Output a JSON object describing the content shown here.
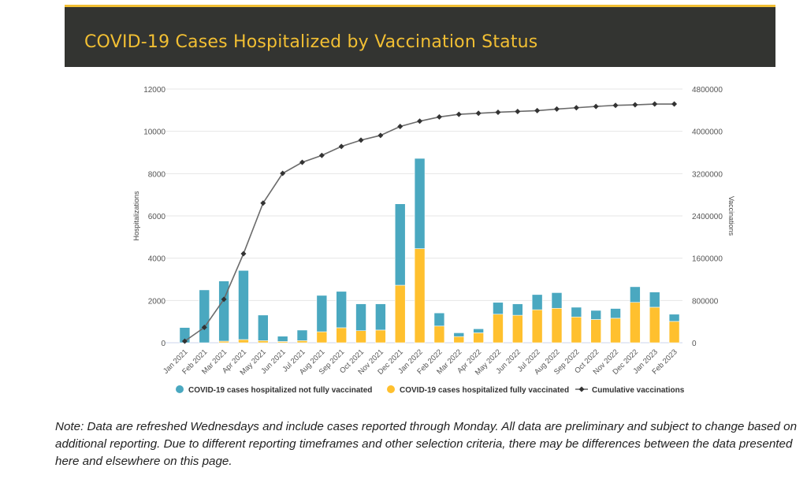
{
  "header": {
    "title": "COVID-19 Cases Hospitalized by Vaccination Status"
  },
  "note": "Note: Data are refreshed Wednesdays and include cases reported through Monday. All data are preliminary and subject to change based on additional reporting. Due to different reporting timeframes and other selection criteria, there may be differences between the data presented here and elsewhere on this page.",
  "chart_data": {
    "type": "bar",
    "stacked": true,
    "title": "",
    "xlabel": "",
    "ylabel": "Hospitalizations",
    "y2label": "Vaccinations",
    "ylim": [
      0,
      12000
    ],
    "y2lim": [
      0,
      4800000
    ],
    "yticks": [
      0,
      2000,
      4000,
      6000,
      8000,
      10000,
      12000
    ],
    "y2ticks": [
      0,
      800000,
      1600000,
      2400000,
      3200000,
      4000000,
      4800000
    ],
    "grid": true,
    "legend": "bottom",
    "categories": [
      "Jan 2021",
      "Feb 2021",
      "Mar 2021",
      "Apr 2021",
      "May 2021",
      "Jun 2021",
      "Jul 2021",
      "Aug 2021",
      "Sep 2021",
      "Oct 2021",
      "Nov 2021",
      "Dec 2021",
      "Jan 2022",
      "Feb 2022",
      "Mar 2022",
      "Apr 2022",
      "May 2022",
      "Jun 2022",
      "Jul 2022",
      "Aug 2022",
      "Sep 2022",
      "Oct 2022",
      "Nov 2022",
      "Dec 2022",
      "Jan 2023",
      "Feb 2023"
    ],
    "series": [
      {
        "name": "COVID-19 cases hospitalized not fully vaccinated",
        "type": "bar",
        "axis": "left",
        "color": "#4aa8c0",
        "values": [
          720,
          2500,
          2845,
          3270,
          1210,
          250,
          500,
          1720,
          1720,
          1270,
          1240,
          3850,
          4270,
          620,
          180,
          190,
          560,
          540,
          720,
          740,
          460,
          430,
          460,
          740,
          720,
          340
        ]
      },
      {
        "name": "COVID-19 cases hospitalized fully vaccinated",
        "type": "bar",
        "axis": "left",
        "color": "#ffc02e",
        "values": [
          0,
          0,
          75,
          150,
          100,
          60,
          100,
          520,
          710,
          570,
          600,
          2720,
          4450,
          790,
          290,
          470,
          1350,
          1300,
          1560,
          1630,
          1220,
          1100,
          1160,
          1910,
          1680,
          1010
        ]
      },
      {
        "name": "Cumulative vaccinations",
        "type": "line",
        "axis": "right",
        "color": "#6b6b6b",
        "marker_color": "#333333",
        "values": [
          30000,
          290000,
          822000,
          1685000,
          2642000,
          3205000,
          3414000,
          3544000,
          3713000,
          3833000,
          3923000,
          4092000,
          4192000,
          4272000,
          4322000,
          4341000,
          4361000,
          4376000,
          4391000,
          4421000,
          4446000,
          4471000,
          4491000,
          4501000,
          4516000,
          4516000
        ]
      }
    ]
  }
}
